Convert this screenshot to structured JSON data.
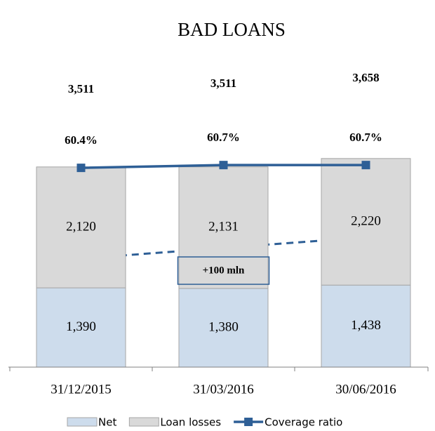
{
  "chart_data": {
    "type": "bar",
    "title": "BAD LOANS",
    "categories": [
      "31/12/2015",
      "31/03/2016",
      "30/06/2016"
    ],
    "stacked": true,
    "series": [
      {
        "name": "Net",
        "color": "#cddcec",
        "values": [
          1390,
          1380,
          1438
        ],
        "value_labels": [
          "1,390",
          "1,380",
          "1,438"
        ]
      },
      {
        "name": "Loan losses",
        "color": "#d9d9d9",
        "values": [
          2120,
          2131,
          2220
        ],
        "value_labels": [
          "2,120",
          "2,131",
          "2,220"
        ]
      },
      {
        "name": "Coverage ratio",
        "type": "line",
        "axis": "y2",
        "color": "#2e5f96",
        "values": [
          60.4,
          60.7,
          60.7
        ],
        "value_labels": [
          "60.4%",
          "60.7%",
          "60.7%"
        ]
      }
    ],
    "totals": {
      "values": [
        3511,
        3511,
        3658
      ],
      "value_labels": [
        "3,511",
        "3,511",
        "3,658"
      ]
    },
    "annotation": "+100 mln",
    "ylim": [
      0,
      4000
    ],
    "y2lim": [
      39,
      63.5
    ],
    "legend": "bottom"
  }
}
